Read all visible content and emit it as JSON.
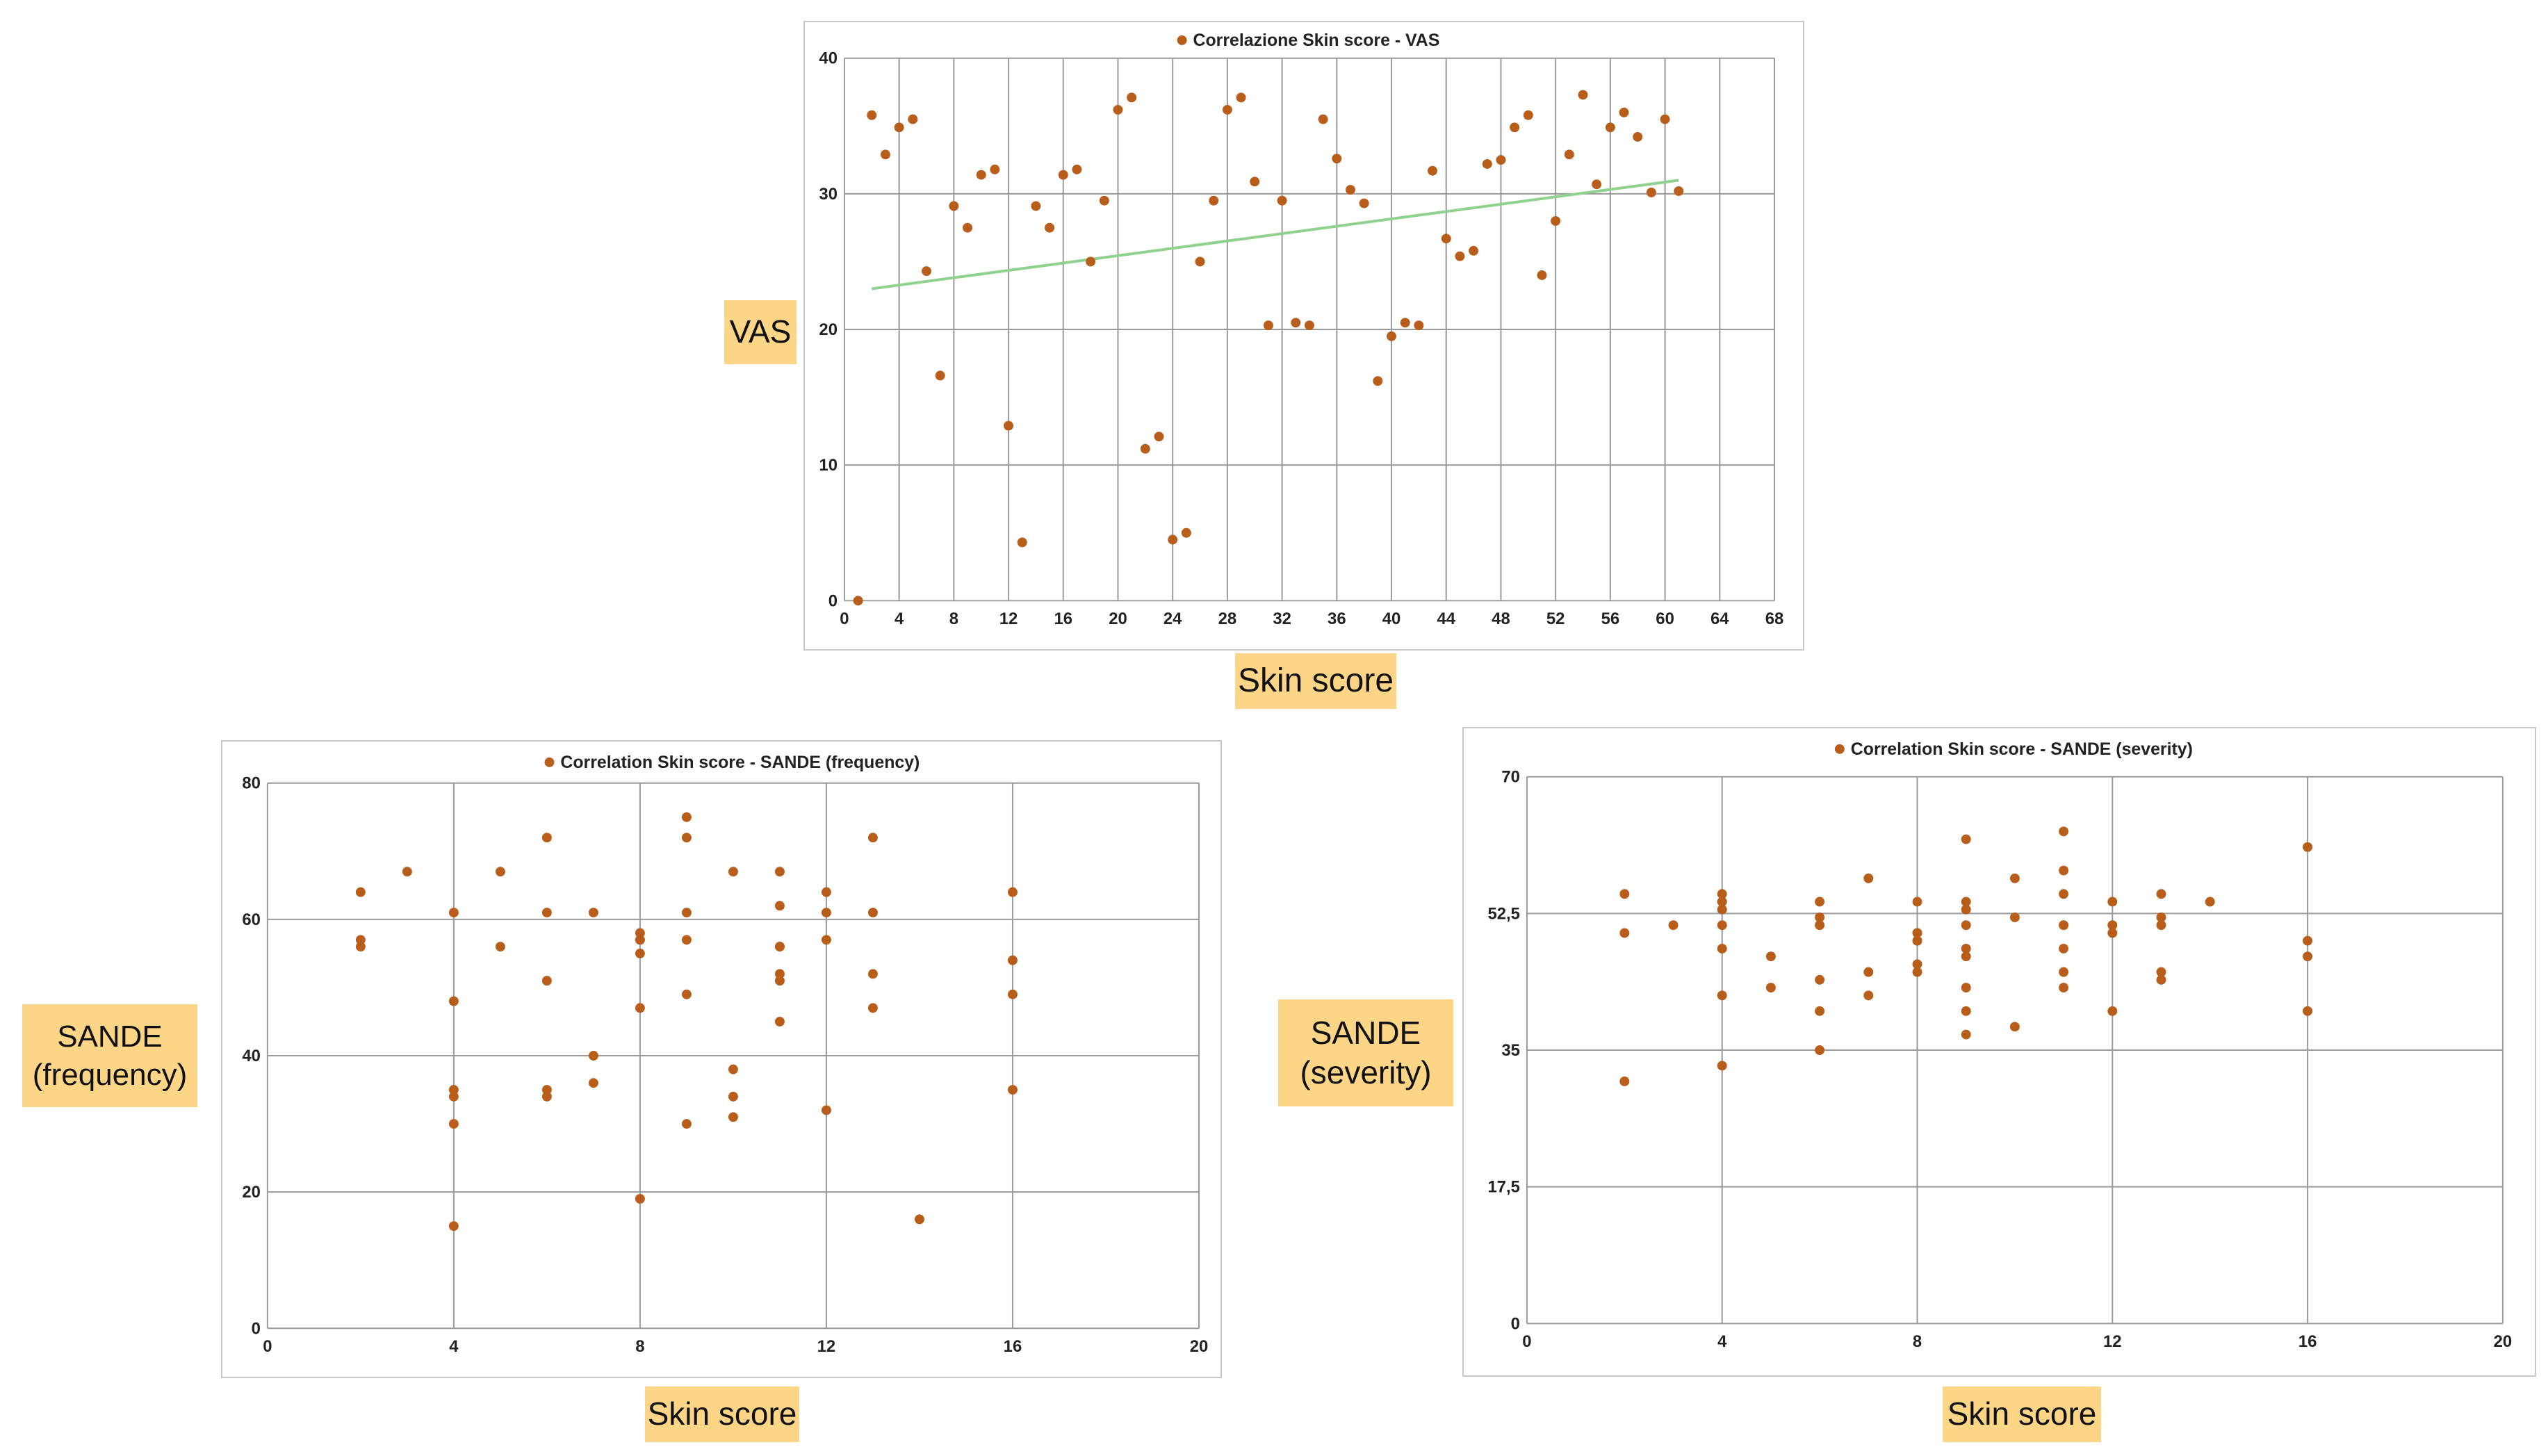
{
  "colors": {
    "marker": "#b85d1a",
    "trend": "#8fd18f",
    "grid": "#9a9a9a",
    "label_bg": "#fdd587"
  },
  "chart_data": [
    {
      "type": "scatter",
      "title": "Correlazione Skin score - VAS",
      "xlabel": "Skin score",
      "ylabel": "VAS",
      "xlim": [
        0,
        68
      ],
      "ylim": [
        0,
        40
      ],
      "xticks": [
        0,
        4,
        8,
        12,
        16,
        20,
        24,
        28,
        32,
        36,
        40,
        44,
        48,
        52,
        56,
        60,
        64,
        68
      ],
      "xtick_labels": [
        "0",
        "4",
        "8",
        "12",
        "16",
        "20",
        "24",
        "28",
        "32",
        "36",
        "40",
        "44",
        "48",
        "52",
        "56",
        "60",
        "64",
        "68"
      ],
      "yticks": [
        0,
        10,
        20,
        30,
        40
      ],
      "ytick_labels": [
        "0",
        "10",
        "20",
        "30",
        "40"
      ],
      "grid": "vertical and horizontal",
      "trendline": {
        "x": [
          2,
          61
        ],
        "y": [
          23,
          31
        ]
      },
      "x": [
        1,
        2,
        3,
        4,
        5,
        6,
        7,
        8,
        9,
        10,
        11,
        12,
        13,
        14,
        15,
        16,
        17,
        18,
        19,
        20,
        21,
        22,
        23,
        24,
        25,
        26,
        27,
        28,
        29,
        30,
        31,
        32,
        33,
        34,
        35,
        36,
        37,
        38,
        39,
        40,
        41,
        42,
        43,
        44,
        45,
        46,
        47,
        48,
        49,
        50,
        51,
        52,
        53,
        54,
        55,
        56,
        57,
        58,
        59,
        60,
        61
      ],
      "y": [
        0,
        35.8,
        32.9,
        34.9,
        35.5,
        24.3,
        16.6,
        29.1,
        27.5,
        31.4,
        31.8,
        12.9,
        4.3,
        29.1,
        27.5,
        31.4,
        31.8,
        25,
        29.5,
        36.2,
        37.1,
        11.2,
        12.1,
        4.5,
        5,
        25,
        29.5,
        36.2,
        37.1,
        30.9,
        20.3,
        29.5,
        20.5,
        20.3,
        35.5,
        32.6,
        30.3,
        29.3,
        16.2,
        19.5,
        20.5,
        20.3,
        31.7,
        26.7,
        25.4,
        25.8,
        32.2,
        32.5,
        34.9,
        35.8,
        24,
        28,
        32.9,
        37.3,
        30.7,
        34.9,
        36,
        34.2,
        30.1,
        35.5,
        30.2
      ]
    },
    {
      "type": "scatter",
      "title": "Correlation Skin score - SANDE (frequency)",
      "xlabel": "Skin score",
      "ylabel": "SANDE\n(frequency)",
      "xlim": [
        0,
        20
      ],
      "ylim": [
        0,
        80
      ],
      "xticks": [
        0,
        4,
        8,
        12,
        16,
        20
      ],
      "xtick_labels": [
        "0",
        "4",
        "8",
        "12",
        "16",
        "20"
      ],
      "yticks": [
        0,
        20,
        40,
        60,
        80
      ],
      "ytick_labels": [
        "0",
        "20",
        "40",
        "60",
        "80"
      ],
      "grid": "vertical and horizontal",
      "x": [
        2,
        2,
        2,
        3,
        4,
        4,
        4,
        4,
        4,
        4,
        5,
        5,
        6,
        6,
        6,
        6,
        6,
        7,
        7,
        7,
        8,
        8,
        8,
        8,
        8,
        8,
        9,
        9,
        9,
        9,
        9,
        9,
        10,
        10,
        10,
        10,
        11,
        11,
        11,
        11,
        11,
        11,
        11,
        12,
        12,
        12,
        12,
        13,
        13,
        13,
        13,
        14,
        16,
        16,
        16,
        16
      ],
      "y": [
        64,
        57,
        56,
        67,
        61,
        48,
        35,
        34,
        30,
        15,
        67,
        56,
        72,
        61,
        51,
        35,
        34,
        61,
        40,
        36,
        58,
        57,
        55,
        47,
        19,
        57,
        75,
        72,
        61,
        57,
        49,
        30,
        67,
        38,
        34,
        31,
        67,
        62,
        56,
        52,
        51,
        45,
        56,
        64,
        61,
        57,
        32,
        72,
        61,
        52,
        47,
        16,
        64,
        54,
        49,
        35
      ]
    },
    {
      "type": "scatter",
      "title": "Correlation Skin score - SANDE (severity)",
      "xlabel": "Skin score",
      "ylabel": "SANDE\n(severity)",
      "xlim": [
        0,
        20
      ],
      "ylim": [
        0,
        70
      ],
      "xticks": [
        0,
        4,
        8,
        12,
        16,
        20
      ],
      "xtick_labels": [
        "0",
        "4",
        "8",
        "12",
        "16",
        "20"
      ],
      "yticks": [
        0,
        17.5,
        35,
        52.5,
        70
      ],
      "ytick_labels": [
        "0",
        "17,5",
        "35",
        "52,5",
        "70"
      ],
      "grid": "vertical and horizontal",
      "x": [
        2,
        2,
        2,
        3,
        4,
        4,
        4,
        4,
        4,
        4,
        4,
        4,
        5,
        5,
        6,
        6,
        6,
        6,
        6,
        6,
        7,
        7,
        7,
        8,
        8,
        8,
        8,
        8,
        8,
        8,
        9,
        9,
        9,
        9,
        9,
        9,
        9,
        9,
        9,
        10,
        10,
        10,
        11,
        11,
        11,
        11,
        11,
        11,
        11,
        11,
        12,
        12,
        12,
        12,
        13,
        13,
        13,
        13,
        13,
        14,
        16,
        16,
        16,
        16
      ],
      "y": [
        55,
        50,
        31,
        51,
        55,
        54,
        53,
        51,
        48,
        42,
        33,
        54,
        47,
        43,
        54,
        51,
        44,
        40,
        35,
        52,
        57,
        45,
        42,
        54,
        50,
        49,
        46,
        45,
        49,
        50,
        62,
        54,
        51,
        48,
        47,
        43,
        40,
        37,
        53,
        57,
        52,
        38,
        63,
        58,
        55,
        51,
        48,
        45,
        43,
        51,
        54,
        51,
        50,
        40,
        55,
        52,
        45,
        44,
        51,
        54,
        61,
        49,
        47,
        40
      ]
    }
  ]
}
